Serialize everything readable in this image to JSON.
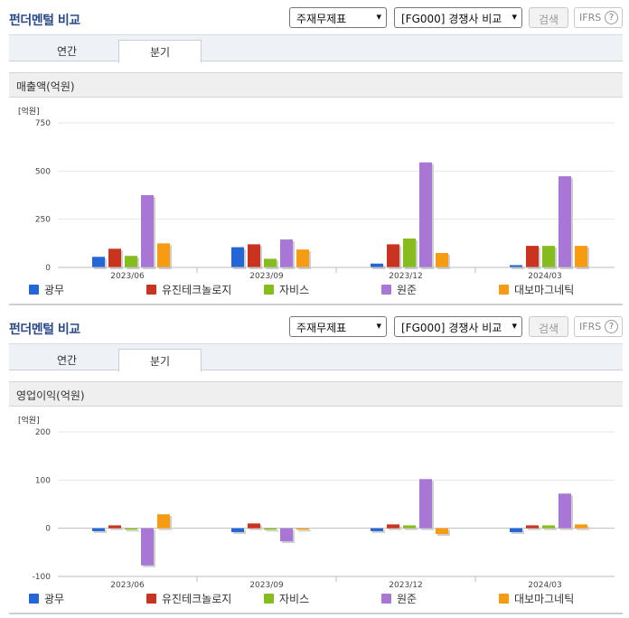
{
  "header": {
    "title": "펀더멘털 비교",
    "select_statement": "주재무제표",
    "select_compare": "[FG000] 경쟁사 비교",
    "search_label": "검색",
    "ifrs_label": "IFRS",
    "help_glyph": "?",
    "dropdown_glyph": "▾"
  },
  "tabs": [
    {
      "label": "연간",
      "active": false
    },
    {
      "label": "분기",
      "active": true
    }
  ],
  "colors": {
    "광무": "#2466d6",
    "유진테크놀로지": "#c8341f",
    "자비스": "#86bd1e",
    "원준": "#a877d6",
    "대보마그네틱": "#f79b13"
  },
  "chart_data": [
    {
      "type": "bar",
      "section_title": "매출액(억원)",
      "unit_label": "[억원]",
      "categories": [
        "2023/06",
        "2023/09",
        "2023/12",
        "2024/03"
      ],
      "ylim": [
        0,
        750
      ],
      "yticks": [
        0,
        250,
        500,
        750
      ],
      "series": [
        {
          "name": "광무",
          "values": [
            55,
            105,
            20,
            12
          ]
        },
        {
          "name": "유진테크놀로지",
          "values": [
            97,
            120,
            120,
            112
          ]
        },
        {
          "name": "자비스",
          "values": [
            60,
            45,
            150,
            112
          ]
        },
        {
          "name": "원준",
          "values": [
            375,
            145,
            545,
            473
          ]
        },
        {
          "name": "대보마그네틱",
          "values": [
            125,
            93,
            75,
            112
          ]
        }
      ]
    },
    {
      "type": "bar",
      "section_title": "영업이익(억원)",
      "unit_label": "[억원]",
      "categories": [
        "2023/06",
        "2023/09",
        "2023/12",
        "2024/03"
      ],
      "ylim": [
        -100,
        200
      ],
      "yticks": [
        -100,
        0,
        100,
        200
      ],
      "series": [
        {
          "name": "광무",
          "values": [
            -6,
            -8,
            -6,
            -8
          ]
        },
        {
          "name": "유진테크놀로지",
          "values": [
            6,
            10,
            8,
            6
          ]
        },
        {
          "name": "자비스",
          "values": [
            -3,
            -3,
            6,
            6
          ]
        },
        {
          "name": "원준",
          "values": [
            -77,
            -27,
            102,
            72
          ]
        },
        {
          "name": "대보마그네틱",
          "values": [
            29,
            -3,
            -12,
            8
          ]
        }
      ]
    }
  ]
}
